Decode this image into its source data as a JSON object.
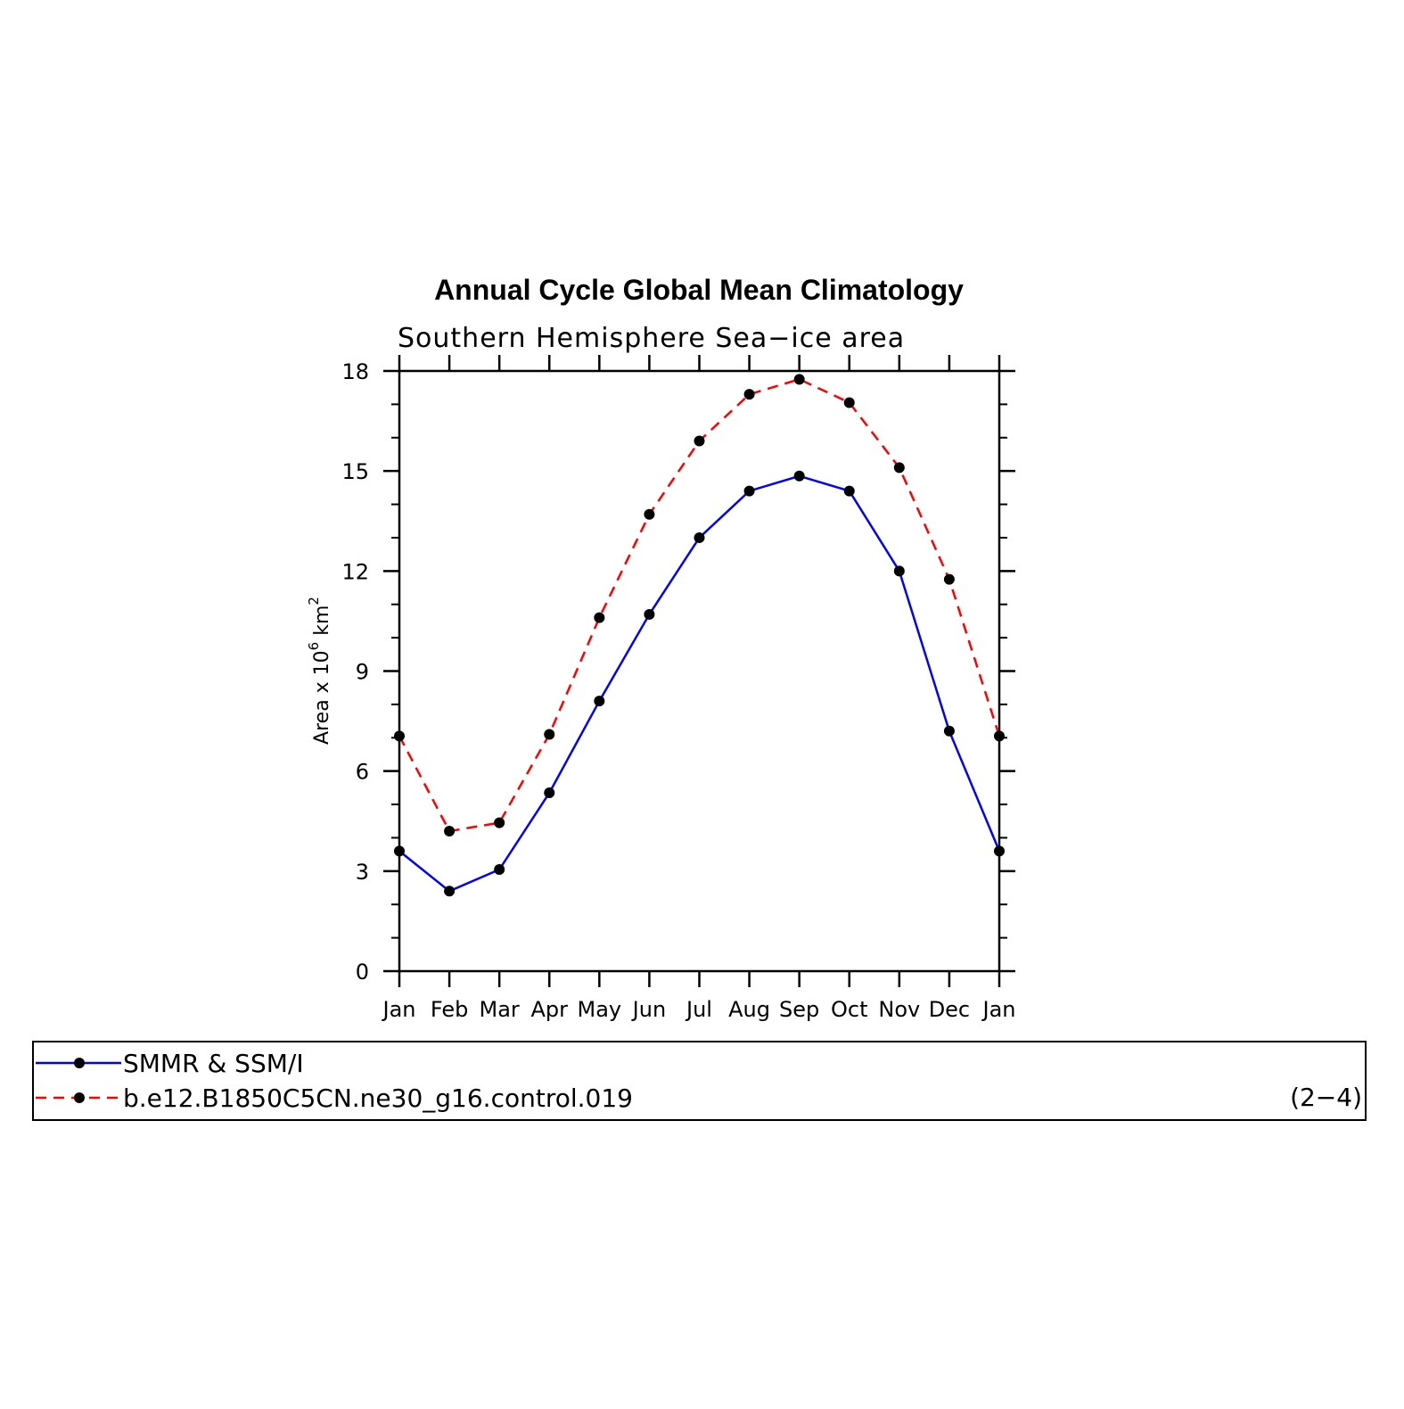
{
  "chart_data": {
    "type": "line",
    "title": "Annual Cycle Global Mean Climatology",
    "subtitle": "Southern Hemisphere Sea−ice area",
    "ylabel": {
      "base": "Area x 10",
      "exp1": "6",
      "unit": " km",
      "exp2": "2"
    },
    "xlabel": "",
    "categories": [
      "Jan",
      "Feb",
      "Mar",
      "Apr",
      "May",
      "Jun",
      "Jul",
      "Aug",
      "Sep",
      "Oct",
      "Nov",
      "Dec",
      "Jan"
    ],
    "ylim": [
      0,
      18
    ],
    "yticks": [
      0,
      3,
      6,
      9,
      12,
      15,
      18
    ],
    "grid": false,
    "series": [
      {
        "name": "SMMR & SSM/I",
        "color": "#0000ff",
        "dash": "solid",
        "marker": "filled-circle",
        "values": [
          3.6,
          2.4,
          3.05,
          5.35,
          8.1,
          10.7,
          13.0,
          14.4,
          14.85,
          14.4,
          12.0,
          7.2,
          3.6
        ]
      },
      {
        "name": "b.e12.B1850C5CN.ne30_g16.control.019",
        "color": "#ff0000",
        "dash": "dashed",
        "marker": "filled-circle",
        "values": [
          7.05,
          4.2,
          4.45,
          7.1,
          10.6,
          13.7,
          15.9,
          17.3,
          17.75,
          17.05,
          15.1,
          11.75,
          7.05
        ]
      }
    ],
    "legend_position": "bottom",
    "panel_label": "(2−4)"
  }
}
